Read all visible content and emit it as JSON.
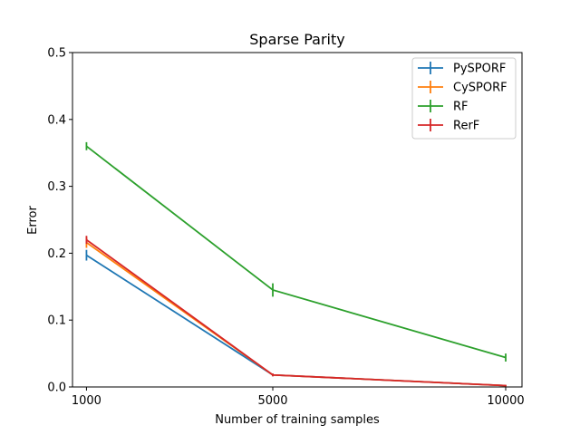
{
  "chart_data": {
    "type": "line",
    "title": "Sparse Parity",
    "xlabel": "Number of training samples",
    "ylabel": "Error",
    "x": [
      1000,
      5000,
      10000
    ],
    "xticks": [
      "1000",
      "5000",
      "10000"
    ],
    "ylim": [
      0,
      0.5
    ],
    "yticks": [
      "0.0",
      "0.1",
      "0.2",
      "0.3",
      "0.4",
      "0.5"
    ],
    "grid": false,
    "legend_position": "top-right",
    "series": [
      {
        "name": "PySPORF",
        "color": "#1f77b4",
        "values": [
          0.197,
          0.018,
          0.002
        ],
        "errors": [
          0.008,
          0.002,
          0.001
        ]
      },
      {
        "name": "CySPORF",
        "color": "#ff7f0e",
        "values": [
          0.216,
          0.018,
          0.002
        ],
        "errors": [
          0.008,
          0.002,
          0.001
        ]
      },
      {
        "name": "RF",
        "color": "#2ca02c",
        "values": [
          0.36,
          0.145,
          0.044
        ],
        "errors": [
          0.006,
          0.01,
          0.006
        ]
      },
      {
        "name": "RerF",
        "color": "#d62728",
        "values": [
          0.22,
          0.018,
          0.002
        ],
        "errors": [
          0.006,
          0.002,
          0.001
        ]
      }
    ]
  }
}
